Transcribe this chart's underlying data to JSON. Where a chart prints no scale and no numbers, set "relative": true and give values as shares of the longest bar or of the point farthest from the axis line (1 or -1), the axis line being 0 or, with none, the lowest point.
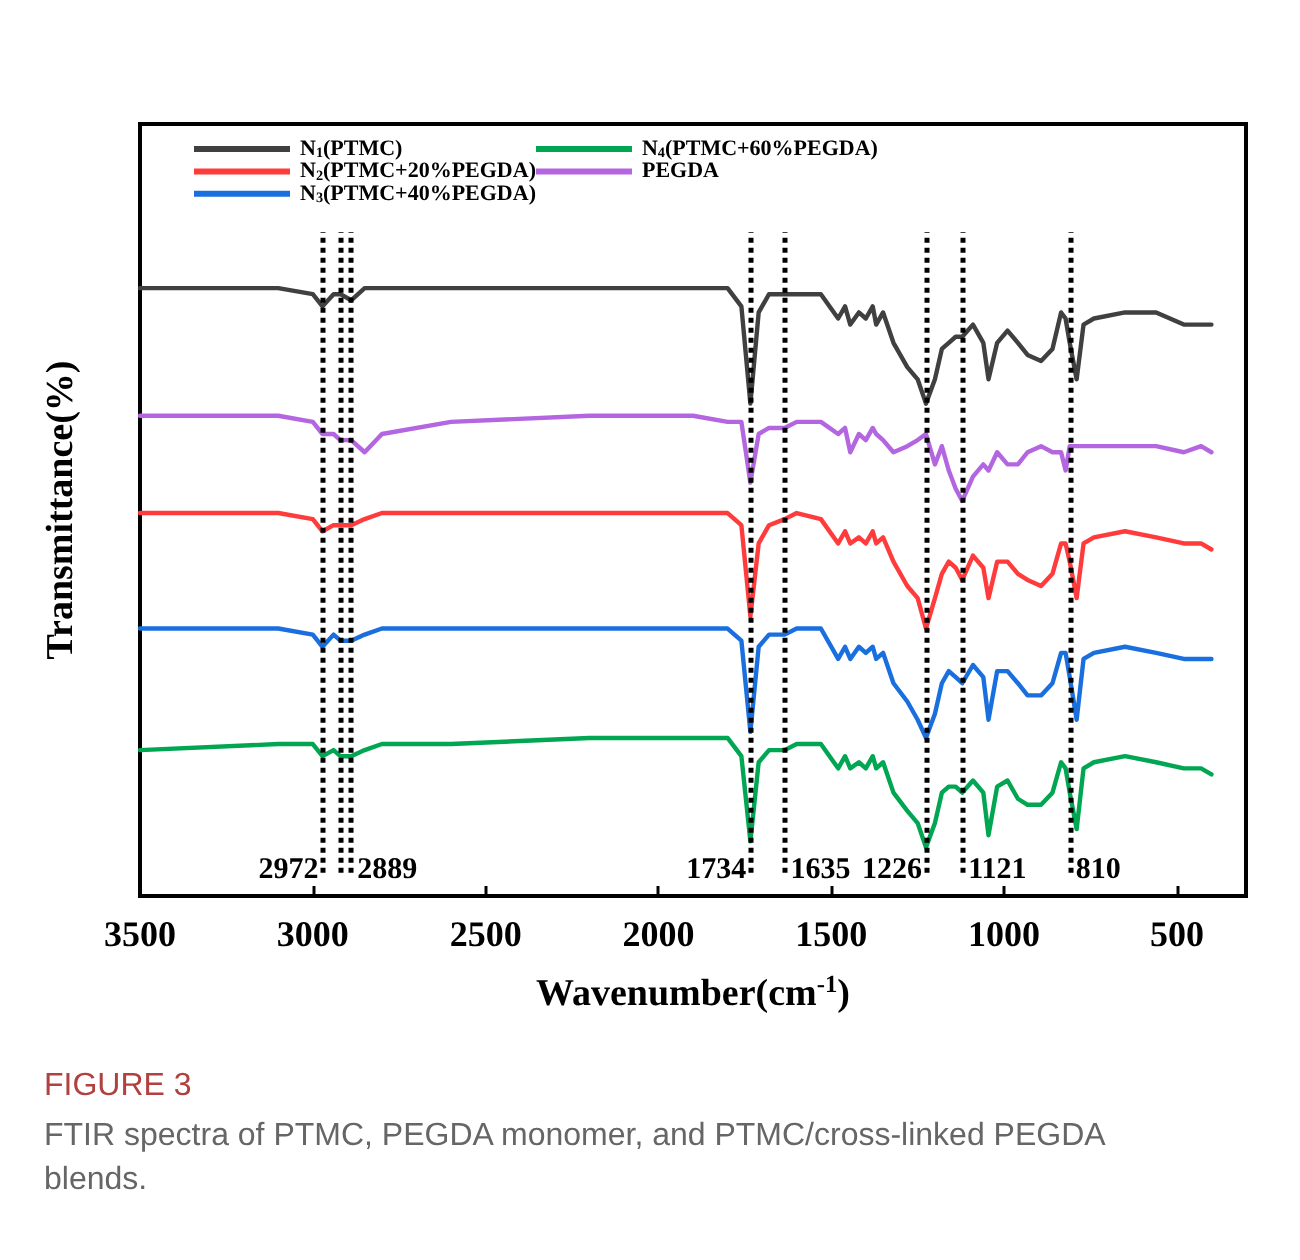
{
  "chart_data": {
    "type": "line",
    "relative": true,
    "xlabel": "Wavenumber(cm$^{-1}$)",
    "ylabel": "Transmittance(%)",
    "annotations": [
      "FIGURE 3",
      "FTIR spectra of PTMC, PEGDA monomer, and PTMC/cross-linked PEGDA blends."
    ],
    "xlim": [
      3500,
      300
    ],
    "xticks": [
      3500,
      3000,
      2500,
      2000,
      1500,
      1000,
      500
    ],
    "grid": false,
    "legend": "top left",
    "line_style": "solid",
    "marker": "none",
    "x": [
      3500,
      3100,
      3000,
      2972,
      2940,
      2920,
      2889,
      2850,
      2800,
      2600,
      2200,
      1900,
      1800,
      1760,
      1734,
      1710,
      1680,
      1635,
      1600,
      1530,
      1480,
      1460,
      1445,
      1420,
      1400,
      1380,
      1370,
      1350,
      1320,
      1280,
      1250,
      1226,
      1200,
      1180,
      1160,
      1140,
      1121,
      1090,
      1060,
      1045,
      1020,
      990,
      960,
      932,
      893,
      860,
      835,
      822,
      810,
      790,
      770,
      740,
      650,
      560,
      480,
      430,
      400
    ],
    "series": [
      {
        "name": "N$_{1}$(PTMC)",
        "color": "#404040",
        "values": [
          1.0,
          1.0,
          0.99,
          0.97,
          0.99,
          0.99,
          0.98,
          1.0,
          1.0,
          1.0,
          1.0,
          1.0,
          1.0,
          0.97,
          0.81,
          0.96,
          0.99,
          0.99,
          0.99,
          0.99,
          0.95,
          0.97,
          0.94,
          0.96,
          0.95,
          0.97,
          0.94,
          0.96,
          0.91,
          0.87,
          0.85,
          0.81,
          0.85,
          0.9,
          0.91,
          0.92,
          0.92,
          0.94,
          0.91,
          0.85,
          0.91,
          0.93,
          0.91,
          0.89,
          0.88,
          0.9,
          0.96,
          0.95,
          0.91,
          0.85,
          0.94,
          0.95,
          0.96,
          0.96,
          0.94,
          0.94,
          0.94
        ]
      },
      {
        "name": "N$_{2}$(PTMC+20%PEGDA)",
        "color": "#ff3b3b",
        "values": [
          0.63,
          0.63,
          0.62,
          0.6,
          0.61,
          0.61,
          0.61,
          0.62,
          0.63,
          0.63,
          0.63,
          0.63,
          0.63,
          0.61,
          0.46,
          0.58,
          0.61,
          0.62,
          0.63,
          0.62,
          0.58,
          0.6,
          0.58,
          0.59,
          0.58,
          0.6,
          0.58,
          0.59,
          0.55,
          0.51,
          0.49,
          0.44,
          0.49,
          0.53,
          0.55,
          0.54,
          0.52,
          0.56,
          0.54,
          0.49,
          0.55,
          0.55,
          0.53,
          0.52,
          0.51,
          0.53,
          0.58,
          0.58,
          0.55,
          0.49,
          0.58,
          0.59,
          0.6,
          0.59,
          0.58,
          0.58,
          0.57
        ]
      },
      {
        "name": "N$_{3}$(PTMC+40%PEGDA)",
        "color": "#1a6fdf",
        "values": [
          0.44,
          0.44,
          0.43,
          0.41,
          0.43,
          0.42,
          0.42,
          0.43,
          0.44,
          0.44,
          0.44,
          0.44,
          0.44,
          0.42,
          0.27,
          0.41,
          0.43,
          0.43,
          0.44,
          0.44,
          0.39,
          0.41,
          0.39,
          0.41,
          0.4,
          0.41,
          0.39,
          0.4,
          0.35,
          0.32,
          0.29,
          0.26,
          0.3,
          0.35,
          0.37,
          0.36,
          0.35,
          0.38,
          0.36,
          0.29,
          0.37,
          0.37,
          0.35,
          0.33,
          0.33,
          0.35,
          0.4,
          0.4,
          0.36,
          0.29,
          0.39,
          0.4,
          0.41,
          0.4,
          0.39,
          0.39,
          0.39
        ]
      },
      {
        "name": "N$_{4}$(PTMC+60%PEGDA)",
        "color": "#00a651",
        "values": [
          0.24,
          0.25,
          0.25,
          0.23,
          0.24,
          0.23,
          0.23,
          0.24,
          0.25,
          0.25,
          0.26,
          0.26,
          0.26,
          0.23,
          0.09,
          0.22,
          0.24,
          0.24,
          0.25,
          0.25,
          0.21,
          0.23,
          0.21,
          0.22,
          0.21,
          0.23,
          0.21,
          0.22,
          0.17,
          0.14,
          0.12,
          0.08,
          0.12,
          0.17,
          0.18,
          0.18,
          0.17,
          0.19,
          0.17,
          0.1,
          0.18,
          0.19,
          0.16,
          0.15,
          0.15,
          0.17,
          0.22,
          0.21,
          0.17,
          0.11,
          0.21,
          0.22,
          0.23,
          0.22,
          0.21,
          0.21,
          0.2
        ]
      },
      {
        "name": "PEGDA",
        "color": "#b366e0",
        "values": [
          0.79,
          0.79,
          0.78,
          0.76,
          0.76,
          0.75,
          0.75,
          0.73,
          0.76,
          0.78,
          0.79,
          0.79,
          0.78,
          0.78,
          0.68,
          0.76,
          0.77,
          0.77,
          0.78,
          0.78,
          0.76,
          0.77,
          0.73,
          0.76,
          0.75,
          0.77,
          0.76,
          0.75,
          0.73,
          0.74,
          0.75,
          0.76,
          0.71,
          0.74,
          0.7,
          0.67,
          0.65,
          0.69,
          0.71,
          0.7,
          0.73,
          0.71,
          0.71,
          0.73,
          0.74,
          0.73,
          0.73,
          0.7,
          0.74,
          0.74,
          0.74,
          0.74,
          0.74,
          0.74,
          0.73,
          0.74,
          0.73
        ]
      }
    ],
    "ref_lines": [
      {
        "axis": "x",
        "value": 2972,
        "label": "2972",
        "color": "#000000",
        "line_style": "dotted"
      },
      {
        "axis": "x",
        "value": 2920,
        "label": null,
        "color": "#000000",
        "line_style": "dotted"
      },
      {
        "axis": "x",
        "value": 2889,
        "label": "2889",
        "color": "#000000",
        "line_style": "dotted"
      },
      {
        "axis": "x",
        "value": 1734,
        "label": "1734",
        "color": "#000000",
        "line_style": "dotted"
      },
      {
        "axis": "x",
        "value": 1635,
        "label": "1635",
        "color": "#000000",
        "line_style": "dotted"
      },
      {
        "axis": "x",
        "value": 1226,
        "label": "1226",
        "color": "#000000",
        "line_style": "dotted"
      },
      {
        "axis": "x",
        "value": 1121,
        "label": "1121",
        "color": "#000000",
        "line_style": "dotted"
      },
      {
        "axis": "x",
        "value": 810,
        "label": "810",
        "color": "#000000",
        "line_style": "dotted"
      }
    ]
  }
}
